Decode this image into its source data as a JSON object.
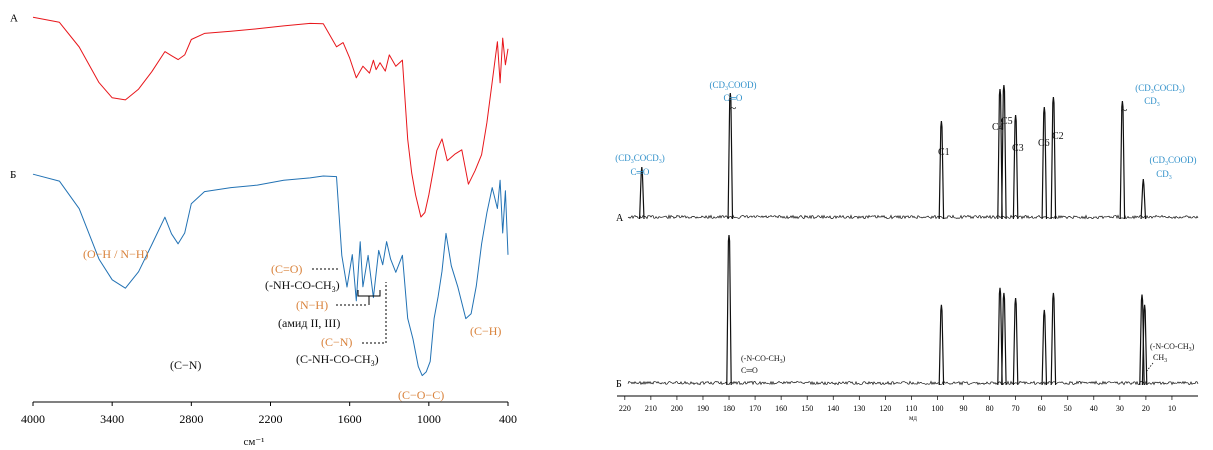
{
  "chart_data": [
    {
      "type": "line",
      "xlabel": "см⁻¹",
      "xlim": [
        4000,
        400
      ],
      "x_ticks": [
        "4000",
        "3400",
        "2800",
        "2200",
        "1600",
        "1000",
        "400"
      ],
      "series": [
        {
          "name": "А",
          "color": "#e8161b",
          "x": [
            4000,
            3800,
            3650,
            3500,
            3400,
            3300,
            3200,
            3100,
            3000,
            2950,
            2900,
            2850,
            2800,
            2700,
            2500,
            2300,
            2100,
            1900,
            1800,
            1700,
            1650,
            1600,
            1550,
            1500,
            1450,
            1420,
            1400,
            1370,
            1330,
            1300,
            1250,
            1200,
            1160,
            1130,
            1100,
            1060,
            1030,
            1000,
            970,
            940,
            900,
            860,
            800,
            750,
            700,
            650,
            600,
            560,
            520,
            480,
            460,
            440,
            420,
            400
          ],
          "y": [
            0.99,
            0.97,
            0.86,
            0.7,
            0.63,
            0.62,
            0.67,
            0.75,
            0.84,
            0.82,
            0.8,
            0.82,
            0.89,
            0.92,
            0.93,
            0.94,
            0.95,
            0.96,
            0.96,
            0.86,
            0.88,
            0.81,
            0.72,
            0.77,
            0.74,
            0.8,
            0.76,
            0.79,
            0.75,
            0.82,
            0.77,
            0.8,
            0.45,
            0.3,
            0.2,
            0.1,
            0.12,
            0.2,
            0.3,
            0.4,
            0.45,
            0.35,
            0.38,
            0.4,
            0.25,
            0.31,
            0.38,
            0.52,
            0.7,
            0.88,
            0.7,
            0.9,
            0.78,
            0.85
          ]
        },
        {
          "name": "Б",
          "color": "#2272b4",
          "x": [
            4000,
            3800,
            3650,
            3500,
            3400,
            3300,
            3200,
            3100,
            3000,
            2950,
            2900,
            2850,
            2800,
            2700,
            2500,
            2300,
            2100,
            1900,
            1800,
            1700,
            1660,
            1620,
            1580,
            1550,
            1520,
            1500,
            1460,
            1420,
            1380,
            1350,
            1320,
            1290,
            1250,
            1200,
            1160,
            1120,
            1080,
            1050,
            1020,
            990,
            960,
            930,
            900,
            870,
            830,
            780,
            720,
            680,
            640,
            600,
            560,
            520,
            480,
            460,
            440,
            420,
            400
          ],
          "y": [
            0.98,
            0.95,
            0.82,
            0.58,
            0.48,
            0.44,
            0.52,
            0.65,
            0.78,
            0.7,
            0.65,
            0.7,
            0.84,
            0.9,
            0.92,
            0.93,
            0.95,
            0.96,
            0.97,
            0.97,
            0.6,
            0.45,
            0.6,
            0.38,
            0.66,
            0.45,
            0.6,
            0.4,
            0.62,
            0.55,
            0.66,
            0.58,
            0.52,
            0.6,
            0.3,
            0.2,
            0.07,
            0.03,
            0.05,
            0.1,
            0.3,
            0.4,
            0.52,
            0.7,
            0.55,
            0.45,
            0.3,
            0.32,
            0.45,
            0.65,
            0.8,
            0.92,
            0.82,
            0.95,
            0.7,
            0.9,
            0.6
          ]
        }
      ],
      "annotations": {
        "oh_nh": "(O−H / N−H)",
        "co_amide": "(C=O)",
        "nhcoch3": "(-NH-CO-CH",
        "nh": "(N−H)",
        "amide": "(амид II, III)",
        "cn": "(C−N)",
        "cnh": "(C-NH-CO-CH",
        "cn_left": "(C−N)",
        "coc": "(C−O−C)",
        "ch": "(C−H)",
        "sub3": "3",
        "close": ")"
      }
    },
    {
      "type": "line",
      "xlabel": "мд",
      "xlim": [
        223,
        0
      ],
      "x_ticks": [
        220,
        210,
        200,
        190,
        180,
        170,
        160,
        150,
        140,
        130,
        120,
        110,
        100,
        90,
        80,
        70,
        60,
        50,
        40,
        30,
        20,
        10
      ],
      "series": [
        {
          "name": "А",
          "peaks": [
            {
              "ppm": 213.5,
              "height": 0.25
            },
            {
              "ppm": 179.5,
              "height": 0.62
            },
            {
              "ppm": 98.5,
              "height": 0.48
            },
            {
              "ppm": 76.0,
              "height": 0.64
            },
            {
              "ppm": 74.5,
              "height": 0.66
            },
            {
              "ppm": 70.0,
              "height": 0.51
            },
            {
              "ppm": 59.0,
              "height": 0.55
            },
            {
              "ppm": 55.5,
              "height": 0.6
            },
            {
              "ppm": 29.0,
              "height": 0.58
            },
            {
              "ppm": 21.0,
              "height": 0.19
            }
          ]
        },
        {
          "name": "Б",
          "peaks": [
            {
              "ppm": 180.0,
              "height": 0.87
            },
            {
              "ppm": 98.5,
              "height": 0.46
            },
            {
              "ppm": 76.0,
              "height": 0.56
            },
            {
              "ppm": 74.5,
              "height": 0.53
            },
            {
              "ppm": 70.0,
              "height": 0.5
            },
            {
              "ppm": 59.0,
              "height": 0.43
            },
            {
              "ppm": 55.5,
              "height": 0.53
            },
            {
              "ppm": 21.5,
              "height": 0.52
            },
            {
              "ppm": 20.5,
              "height": 0.46
            }
          ]
        }
      ],
      "labels": {
        "c1": "C1",
        "c2": "C2",
        "c3": "C3",
        "c4": "C4",
        "c5": "C5",
        "c6": "C6",
        "cd3cocd3_co_1": "(CD",
        "cd3cocd3_co_2": "COCD",
        "cd3cocd3_co_3": ")",
        "co": "C═O",
        "cd3cood_1": "(CD",
        "cd3cood_2": "COOD)",
        "cd3": "CD",
        "tilde": "~",
        "nco_1": "(-N-CO-CH",
        "nco_2": ")",
        "ch3": "CH",
        "sub3": "3"
      }
    }
  ]
}
